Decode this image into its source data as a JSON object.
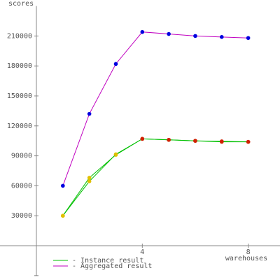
{
  "chart_data": {
    "type": "line",
    "y_label": "scores",
    "x_label": "warehouses",
    "xlim": [
      0,
      9.2
    ],
    "xticks": [
      4,
      8
    ],
    "ylim": [
      -30000,
      240000
    ],
    "yticks": [
      30000,
      60000,
      90000,
      120000,
      150000,
      180000,
      210000
    ],
    "x": [
      1,
      2,
      3,
      4,
      5,
      6,
      7,
      8
    ],
    "series": [
      {
        "name": "- Instance result",
        "color": "#00c000",
        "marker_colors": [
          "#e0c000",
          "#e0c000",
          "#e0c000",
          "#d02000",
          "#d02000",
          "#d02000",
          "#d02000",
          "#d02000"
        ],
        "values": [
          30000,
          68000,
          91000,
          107000,
          106000,
          105000,
          104500,
          104000
        ]
      },
      {
        "color": "#00c000",
        "marker_colors": [
          "#e0c000",
          "#e0c000",
          "#e0c000",
          "#d02000",
          "#d02000",
          "#d02000",
          "#d02000",
          "#d02000"
        ],
        "values": [
          30000,
          64500,
          91500,
          107000,
          106000,
          105000,
          104000,
          104000
        ]
      },
      {
        "name": "- Aggregated result",
        "color": "#c000c0",
        "marker_colors": [
          "#0000e0",
          "#0000e0",
          "#0000e0",
          "#0000e0",
          "#0000e0",
          "#0000e0",
          "#0000e0",
          "#0000e0"
        ],
        "values": [
          60000,
          132000,
          182000,
          214000,
          212000,
          210000,
          209000,
          208000
        ]
      }
    ]
  }
}
